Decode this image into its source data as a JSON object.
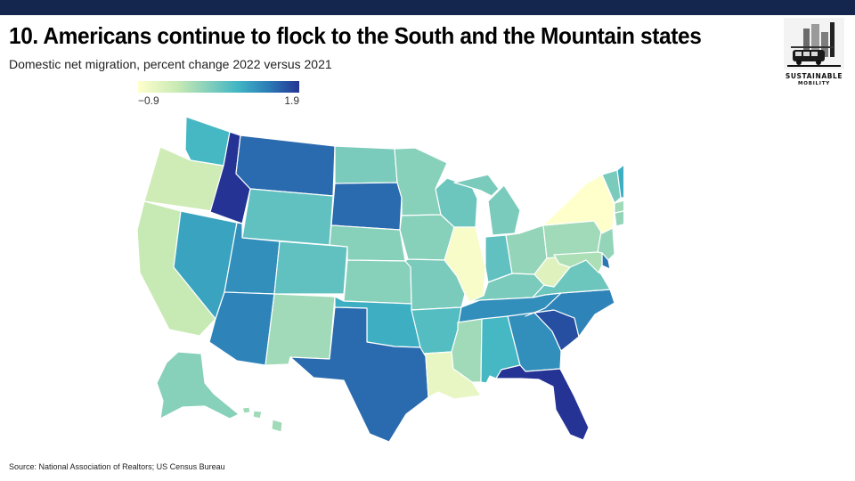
{
  "title": "10. Americans continue to flock to the South and the Mountain states",
  "subtitle": "Domestic net migration, percent change 2022 versus 2021",
  "legend": {
    "min_label": "−0.9",
    "max_label": "1.9",
    "min": -0.9,
    "max": 1.9
  },
  "logo": {
    "line1": "SUSTAINABLE",
    "line2": "MOBILITY"
  },
  "source": "Source: National Association of Realtors; US Census Bureau",
  "colors": {
    "top_bar": "#14264d",
    "scale": [
      "#ffffcc",
      "#c7e9b4",
      "#7fcdbb",
      "#41b6c4",
      "#2c7fb8",
      "#253494"
    ]
  },
  "states": {
    "WA": 0.8,
    "OR": -0.3,
    "CA": -0.2,
    "ID": 1.9,
    "NV": 1.0,
    "MT": 1.5,
    "WY": 0.6,
    "UT": 1.2,
    "AZ": 1.3,
    "CO": 0.6,
    "NM": 0.1,
    "ND": 0.4,
    "SD": 1.5,
    "NE": 0.3,
    "KS": 0.3,
    "OK": 0.9,
    "TX": 1.5,
    "MN": 0.3,
    "IA": 0.3,
    "MO": 0.4,
    "AR": 0.7,
    "LA": -0.6,
    "WI": 0.5,
    "IL": -0.8,
    "MI": 0.4,
    "IN": 0.6,
    "OH": 0.2,
    "KY": 0.4,
    "TN": 1.2,
    "MS": 0.1,
    "AL": 0.8,
    "GA": 1.2,
    "FL": 1.9,
    "SC": 1.7,
    "NC": 1.3,
    "VA": 0.5,
    "WV": -0.5,
    "PA": 0.1,
    "NY": -0.9,
    "NJ": 0.2,
    "DE": 1.4,
    "MD": 0.0,
    "CT": 0.2,
    "RI": -0.1,
    "MA": 0.1,
    "VT": 0.4,
    "NH": 0.9,
    "ME": 0.9,
    "AK": 0.3,
    "HI": 0.1
  }
}
